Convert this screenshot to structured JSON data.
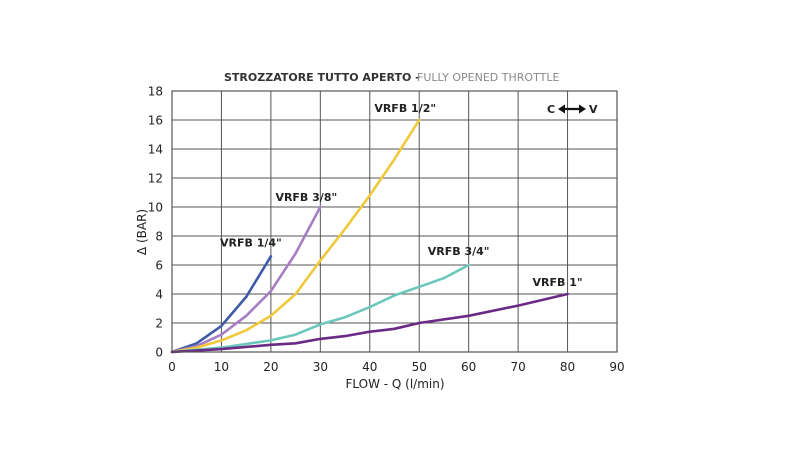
{
  "chart_data": {
    "type": "line",
    "title": "STROZZATORE TUTTO APERTO -",
    "subtitle": "FULLY OPENED THROTTLE",
    "xlabel": "FLOW - Q (l/min)",
    "ylabel": "Δ  (BAR)",
    "xlim": [
      0,
      90
    ],
    "ylim": [
      0,
      18
    ],
    "x_ticks": [
      0,
      10,
      20,
      30,
      40,
      50,
      60,
      70,
      80,
      90
    ],
    "y_ticks": [
      0,
      2,
      4,
      6,
      8,
      10,
      12,
      14,
      16,
      18
    ],
    "grid": true,
    "direction_indicator": {
      "left": "C",
      "right": "V"
    },
    "series": [
      {
        "name": "VRFB 1/4\"",
        "color": "#3f5aa6",
        "x": [
          0,
          5,
          10,
          15,
          20
        ],
        "y": [
          0,
          0.6,
          1.8,
          3.8,
          6.6
        ]
      },
      {
        "name": "VRFB 3/8\"",
        "color": "#a77dc4",
        "x": [
          0,
          5,
          10,
          15,
          20,
          25,
          30
        ],
        "y": [
          0,
          0.4,
          1.2,
          2.5,
          4.2,
          6.8,
          10
        ]
      },
      {
        "name": "VRFB 1/2\"",
        "color": "#f0c93a",
        "x": [
          0,
          5,
          10,
          15,
          20,
          25,
          30,
          35,
          40,
          45,
          50
        ],
        "y": [
          0,
          0.3,
          0.8,
          1.5,
          2.5,
          4.0,
          6.3,
          8.5,
          10.8,
          13.3,
          16
        ]
      },
      {
        "name": "VRFB 3/4\"",
        "color": "#6cc7bc",
        "x": [
          0,
          10,
          20,
          25,
          30,
          35,
          40,
          45,
          50,
          55,
          60
        ],
        "y": [
          0,
          0.3,
          0.8,
          1.2,
          1.9,
          2.4,
          3.1,
          3.9,
          4.5,
          5.1,
          6.0
        ]
      },
      {
        "name": "VRFB 1\"",
        "color": "#6a2a86",
        "x": [
          0,
          10,
          20,
          25,
          30,
          35,
          40,
          45,
          50,
          60,
          70,
          80
        ],
        "y": [
          0,
          0.2,
          0.5,
          0.6,
          0.9,
          1.1,
          1.4,
          1.6,
          2.0,
          2.5,
          3.2,
          4.0
        ]
      }
    ]
  }
}
